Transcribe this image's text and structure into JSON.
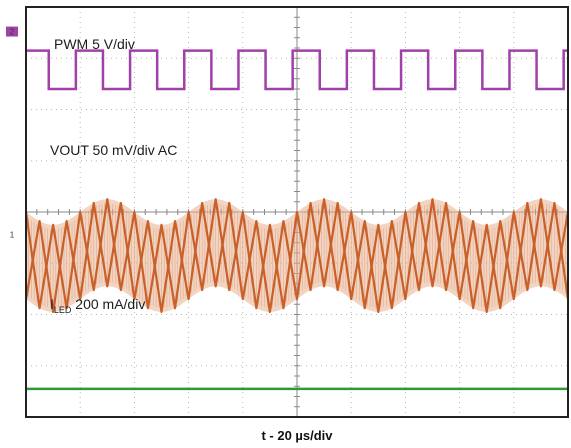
{
  "chart_data": {
    "type": "line",
    "instrument": "oscilloscope",
    "xlabel": "t - 20 µs/div",
    "grid": true,
    "x_divisions": 10,
    "y_divisions": 8,
    "x_range_div": [
      0,
      10
    ],
    "y_range_div": [
      0,
      8
    ],
    "series": [
      {
        "name": "PWM  5 V/div",
        "color": "#a040a8",
        "waveform": "square",
        "period_div": 1.0,
        "high_div": 1.6,
        "low_div": 0.85,
        "rise_edges_div": [
          0.42,
          1.42,
          2.42,
          3.42,
          4.42,
          5.42,
          6.42,
          7.42,
          8.42,
          9.42
        ],
        "fall_edges_div": [
          0.92,
          1.92,
          2.92,
          3.92,
          4.92,
          5.92,
          6.92,
          7.92,
          8.92,
          9.92
        ],
        "ground_marker": "2"
      },
      {
        "name": "VOUT 50 mV/div AC",
        "color": "#c8602a",
        "envelope_color": "#e8b090",
        "waveform": "ripple",
        "center_div": 4.85,
        "ripple_amplitude_div": 0.85,
        "ripple_period_div": 0.5,
        "modulation_amplitude_div": 0.25,
        "modulation_period_div": 2.0,
        "ground_marker": "1"
      },
      {
        "name": "ILED 200 mA/div",
        "name_main": "I",
        "name_sub": "LED",
        "name_rest": " 200 mA/div",
        "color": "#2f9a35",
        "waveform": "dc",
        "level_div": 7.45,
        "ground_marker": "4"
      }
    ]
  }
}
